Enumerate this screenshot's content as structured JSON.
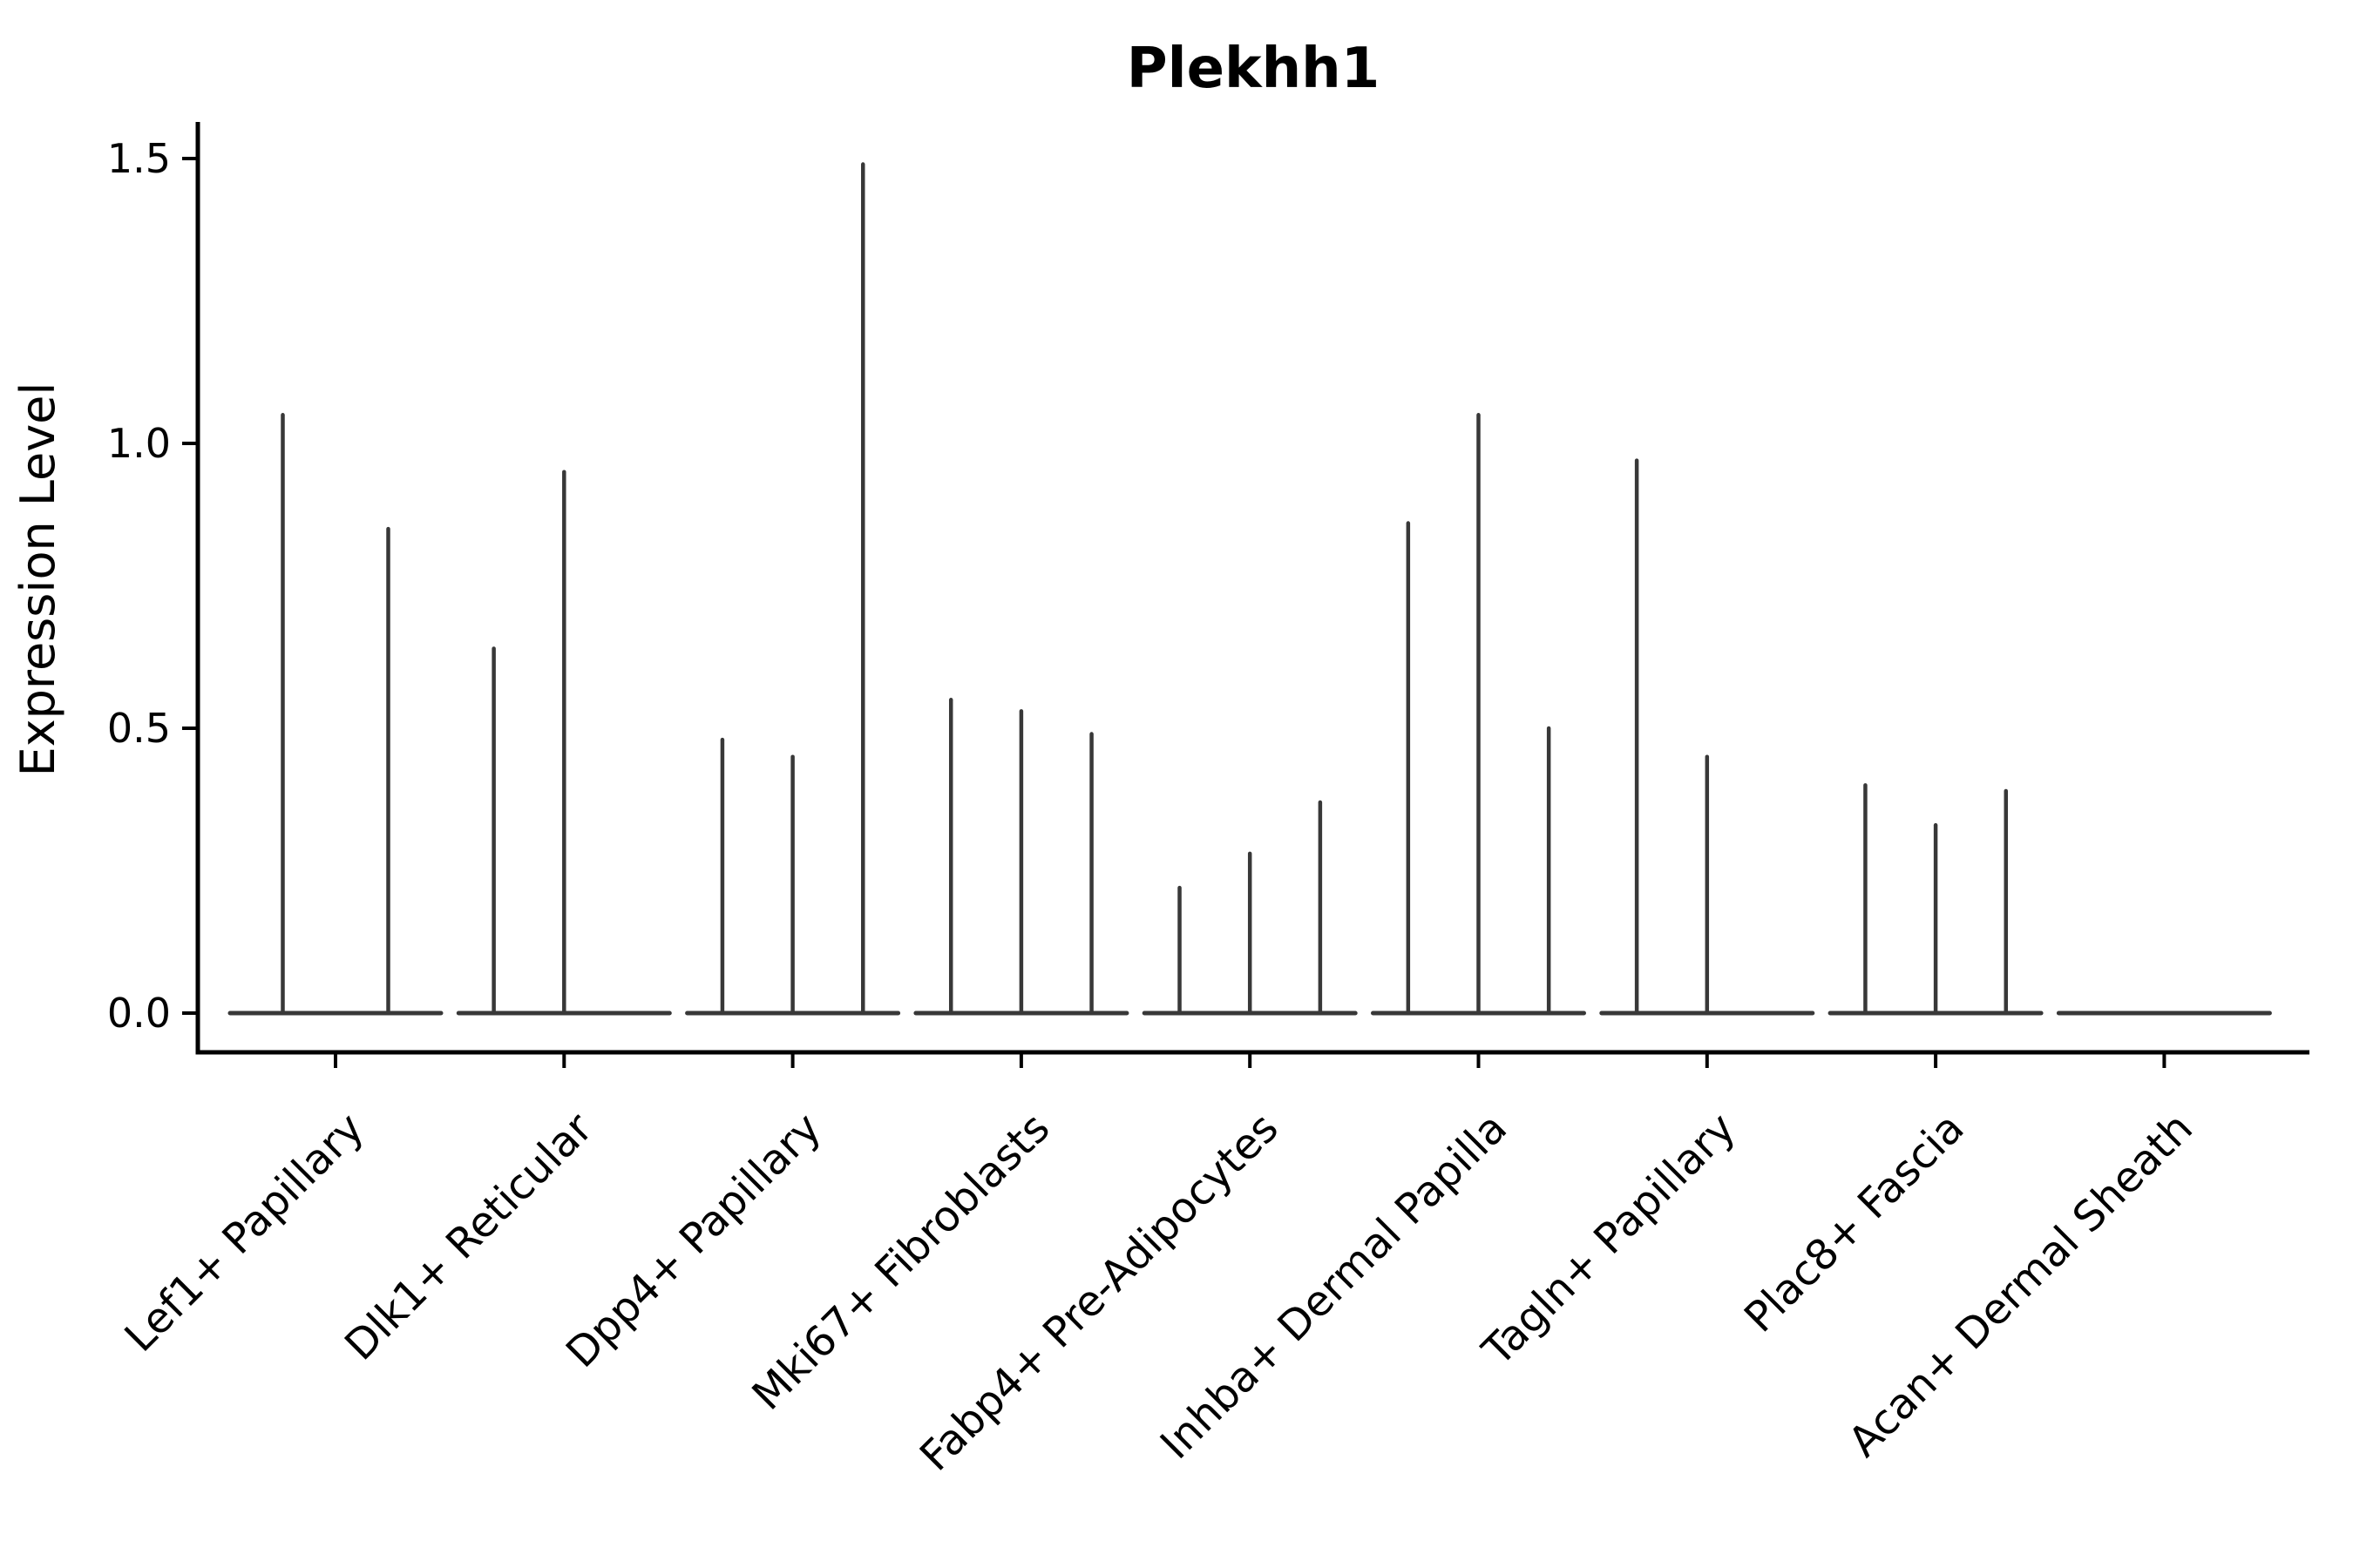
{
  "chart_data": {
    "type": "violin",
    "title": "Plekhh1",
    "xlabel": "",
    "ylabel": "Expression Level",
    "yticks": [
      0.0,
      0.5,
      1.0,
      1.5
    ],
    "ylim": [
      -0.07,
      1.56
    ],
    "grid": false,
    "legend": "none",
    "colors": {
      "violin": "#383838",
      "axis": "#000000",
      "text": "#000000",
      "background": "#ffffff"
    },
    "categories": [
      {
        "label": "Lef1+ Papillary",
        "spike_values": [
          1.05,
          0.85
        ]
      },
      {
        "label": "Dlk1+ Reticular",
        "spike_values": [
          0.64,
          0.95,
          0
        ]
      },
      {
        "label": "Dpp4+ Papillary",
        "spike_values": [
          0.48,
          0.45,
          1.49
        ]
      },
      {
        "label": "Mki67+ Fibroblasts",
        "spike_values": [
          0.55,
          0.53,
          0.49
        ]
      },
      {
        "label": "Fabp4+ Pre-Adipocytes",
        "spike_values": [
          0.22,
          0.28,
          0.37
        ]
      },
      {
        "label": "Inhba+ Dermal Papilla",
        "spike_values": [
          0.86,
          1.05,
          0.5
        ]
      },
      {
        "label": "Tagln+ Papillary",
        "spike_values": [
          0.97,
          0.45,
          0
        ]
      },
      {
        "label": "Plac8+ Fascia",
        "spike_values": [
          0.4,
          0.33,
          0.39
        ]
      },
      {
        "label": "Acan+ Dermal Sheath",
        "spike_values": [
          0
        ]
      }
    ]
  }
}
